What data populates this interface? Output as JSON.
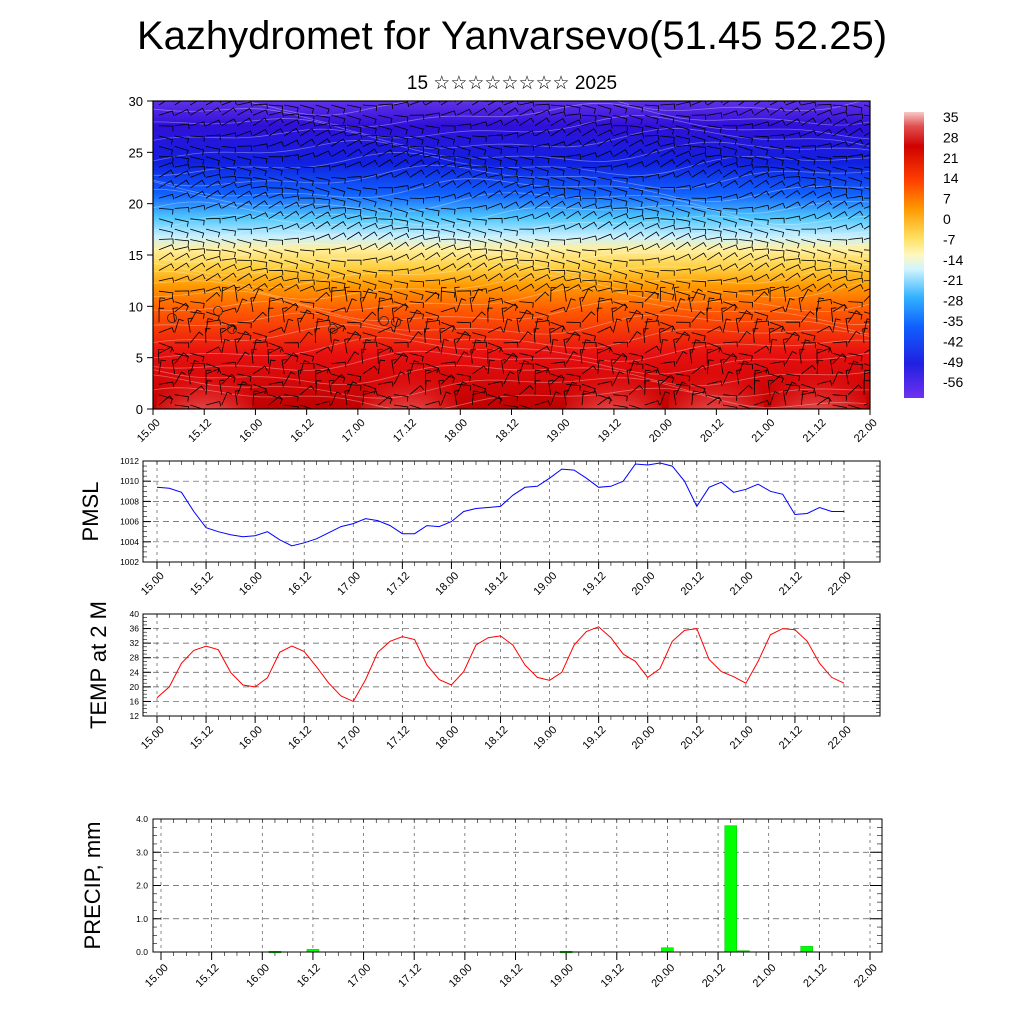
{
  "title": "Kazhydromet for Yanvarsevo(51.45 52.25)",
  "subtitle": "15 ☆☆☆☆☆☆☆☆ 2025",
  "time_labels": [
    "15.00",
    "15.12",
    "16.00",
    "16.12",
    "17.00",
    "17.12",
    "18.00",
    "18.12",
    "19.00",
    "19.12",
    "20.00",
    "20.12",
    "21.00",
    "21.12",
    "22.00"
  ],
  "colors": {
    "pmsl_line": "#0000ff",
    "temp_line": "#ff0000",
    "precip_bar": "#00ff00"
  },
  "chart_data": [
    {
      "type": "heatmap",
      "name": "temperature-wind-cross-section",
      "ylim": [
        0,
        30
      ],
      "yticks": [
        0,
        5,
        10,
        15,
        20,
        25,
        30
      ],
      "x": [
        "15.00",
        "15.12",
        "16.00",
        "16.12",
        "17.00",
        "17.12",
        "18.00",
        "18.12",
        "19.00",
        "19.12",
        "20.00",
        "20.12",
        "21.00",
        "21.12",
        "22.00"
      ],
      "colorbar": {
        "labels": [
          "35",
          "28",
          "21",
          "14",
          "7",
          "0",
          "-7",
          "-14",
          "-21",
          "-28",
          "-35",
          "-42",
          "-49",
          "-56"
        ],
        "range": [
          -60,
          38
        ]
      },
      "warm_core_centers_x_index": [
        1,
        5,
        9,
        11,
        13
      ],
      "freezing_level_approx": 16.5
    },
    {
      "type": "line",
      "name": "pmsl",
      "ylabel": "PMSL",
      "ylim": [
        1002,
        1012
      ],
      "yticks": [
        1002,
        1004,
        1006,
        1008,
        1010,
        1012
      ],
      "x_step_hours": 3,
      "values": [
        1009.4,
        1009.3,
        1008.9,
        1007,
        1005.4,
        1005,
        1004.7,
        1004.5,
        1004.6,
        1005,
        1004.2,
        1003.6,
        1003.9,
        1004.3,
        1004.9,
        1005.5,
        1005.8,
        1006.3,
        1006.1,
        1005.6,
        1004.8,
        1004.8,
        1005.6,
        1005.5,
        1006,
        1007,
        1007.3,
        1007.4,
        1007.5,
        1008.6,
        1009.4,
        1009.5,
        1010.3,
        1011.2,
        1011.1,
        1010.3,
        1009.4,
        1009.5,
        1010,
        1011.7,
        1011.6,
        1011.8,
        1011.5,
        1010,
        1007.5,
        1009.4,
        1009.9,
        1008.9,
        1009.2,
        1009.7,
        1009,
        1008.7,
        1006.7,
        1006.8,
        1007.4,
        1007,
        1007
      ]
    },
    {
      "type": "line",
      "name": "temp-2m",
      "ylabel": "TEMP at 2 M",
      "ylim": [
        12,
        40
      ],
      "yticks": [
        12,
        16,
        20,
        24,
        28,
        32,
        36,
        40
      ],
      "x_step_hours": 3,
      "values": [
        17,
        20,
        26.5,
        30,
        31.2,
        30.2,
        24,
        20.5,
        20,
        22.5,
        29.5,
        31.2,
        29.7,
        25.5,
        21,
        17.5,
        16,
        22,
        29.5,
        32.5,
        33.8,
        33,
        26,
        22,
        20.5,
        24.2,
        31.5,
        33.5,
        34,
        31.5,
        26,
        22.6,
        21.8,
        24,
        31.5,
        35.2,
        36.5,
        33.5,
        29,
        27,
        22.6,
        25,
        32.5,
        35.5,
        36,
        27.5,
        24.2,
        22.8,
        21,
        27,
        34.3,
        36,
        35.7,
        32.5,
        26.5,
        22.6,
        21
      ]
    },
    {
      "type": "bar",
      "name": "precip",
      "ylabel": "PRECIP, mm",
      "ylim": [
        0,
        4
      ],
      "yticks": [
        "0.0",
        "1.0",
        "2.0",
        "3.0",
        "4.0"
      ],
      "x_step_hours": 3,
      "bars": [
        {
          "index": 9,
          "value": 0.02
        },
        {
          "index": 12,
          "value": 0.08
        },
        {
          "index": 32,
          "value": 0.02
        },
        {
          "index": 40,
          "value": 0.13
        },
        {
          "index": 45,
          "value": 3.8
        },
        {
          "index": 46,
          "value": 0.04
        },
        {
          "index": 51,
          "value": 0.17
        }
      ]
    }
  ]
}
